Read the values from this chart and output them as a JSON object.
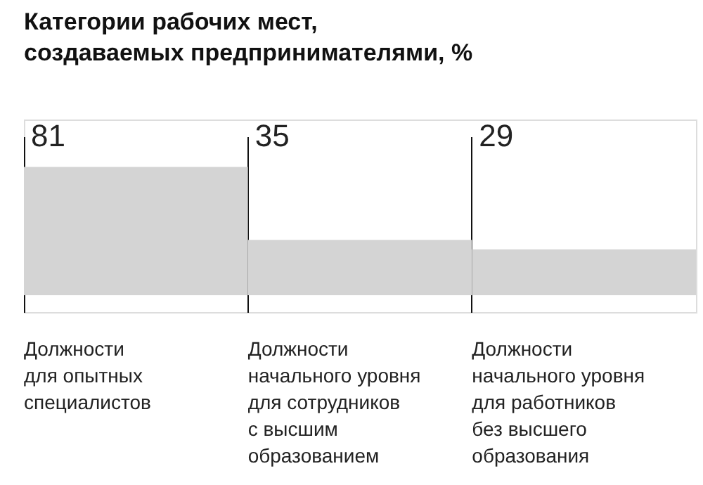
{
  "chart_data": {
    "type": "bar",
    "title": "Категории рабочих мест,\nсоздаваемых предпринимателями, %",
    "categories": [
      "Должности\nдля опытных\nспециалистов",
      "Должности\nначального уровня\nдля сотрудников\nс высшим\nобразованием",
      "Должности\nначального уровня\nдля работников\nбез высшего\nобразования"
    ],
    "values": [
      81,
      35,
      29
    ],
    "color": "#d4d4d4",
    "data_labels": true,
    "grid": "x"
  }
}
